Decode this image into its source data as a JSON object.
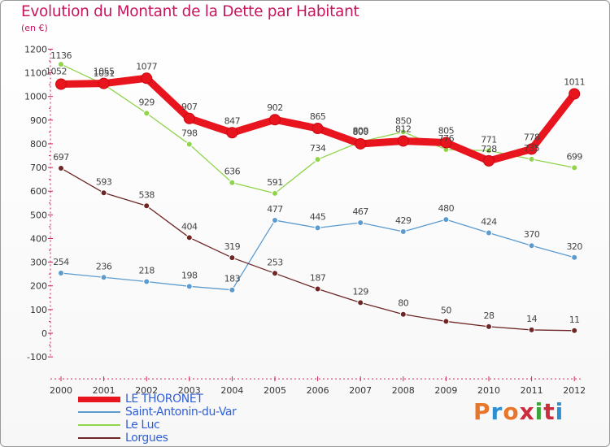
{
  "title": "Evolution du Montant de la Dette par Habitant",
  "subtitle": "(en €)",
  "logo": {
    "text": "Proxiti",
    "colors": [
      "#e8752a",
      "#2b8fd1",
      "#e8752a",
      "#cc2d3d",
      "#3aa63a",
      "#cc2d3d",
      "#2b8fd1"
    ]
  },
  "chart_data": {
    "type": "line",
    "title": "Evolution du Montant de la Dette par Habitant",
    "ylabel": "(en €)",
    "xlabel": "",
    "ylim": [
      -100,
      1200
    ],
    "yticks": [
      -100,
      0,
      100,
      200,
      300,
      400,
      500,
      600,
      700,
      800,
      900,
      1000,
      1100,
      1200
    ],
    "ytick_labels": [
      "-100",
      "0",
      "100",
      "200",
      "300",
      "400",
      "500",
      "600",
      "700",
      "800",
      "900",
      "1000",
      "1100",
      "1200"
    ],
    "x": [
      "2000",
      "2001",
      "2002",
      "2003",
      "2004",
      "2005",
      "2006",
      "2007",
      "2008",
      "2009",
      "2010",
      "2011",
      "2012"
    ],
    "grid": false,
    "legend_position": "bottom-left",
    "series": [
      {
        "name": "LE THORONET",
        "color": "#e8141e",
        "values": [
          1052,
          1055,
          1077,
          907,
          847,
          902,
          865,
          800,
          812,
          805,
          728,
          778,
          1011
        ],
        "labels": [
          "1052",
          "1055",
          "1077",
          "907",
          "847",
          "902",
          "865",
          "800",
          "812",
          "805",
          "728",
          "778",
          "1011"
        ]
      },
      {
        "name": "Saint-Antonin-du-Var",
        "color": "#5b9bd0",
        "values": [
          254,
          236,
          218,
          198,
          183,
          477,
          445,
          467,
          429,
          480,
          424,
          370,
          320
        ],
        "labels": [
          "254",
          "236",
          "218",
          "198",
          "183",
          "477",
          "445",
          "467",
          "429",
          "480",
          "424",
          "370",
          "320"
        ]
      },
      {
        "name": "Le Luc",
        "color": "#8fd44a",
        "values": [
          1136,
          1051,
          929,
          798,
          636,
          591,
          734,
          809,
          850,
          776,
          771,
          735,
          699
        ],
        "labels": [
          "1136",
          "1051",
          "929",
          "798",
          "636",
          "591",
          "734",
          "809",
          "850",
          "776",
          "771",
          "735",
          "699"
        ]
      },
      {
        "name": "Lorgues",
        "color": "#6e2626",
        "values": [
          697,
          593,
          538,
          404,
          319,
          253,
          187,
          129,
          80,
          50,
          28,
          14,
          11
        ],
        "labels": [
          "697",
          "593",
          "538",
          "404",
          "319",
          "253",
          "187",
          "129",
          "80",
          "50",
          "28",
          "14",
          "11"
        ]
      }
    ]
  }
}
